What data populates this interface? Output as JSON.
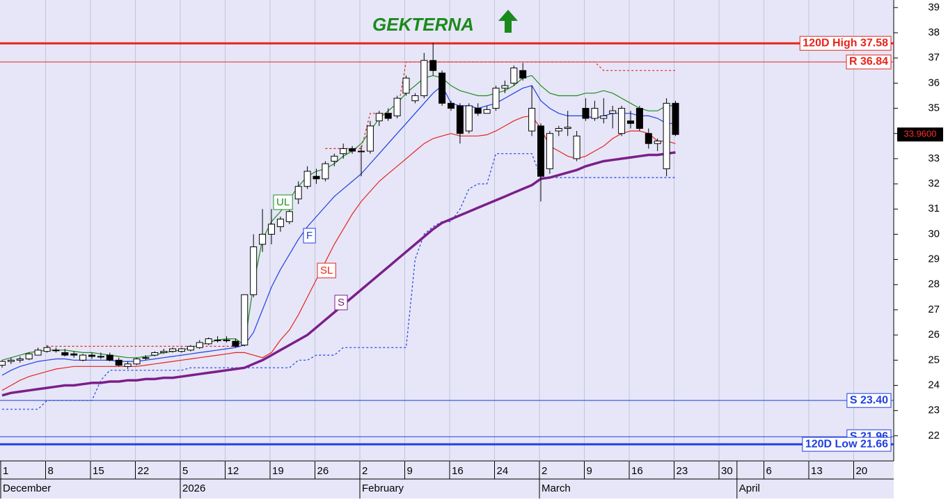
{
  "chart_data": {
    "type": "candlestick",
    "title": "GEKTERNA",
    "title_color": "#1a8a1a",
    "categories": [
      "1",
      null,
      null,
      null,
      null,
      "8",
      null,
      null,
      null,
      null,
      "15",
      null,
      null,
      null,
      null,
      "22",
      null,
      null,
      null,
      null,
      "5",
      null,
      null,
      null,
      null,
      "12",
      null,
      null,
      null,
      null,
      "19",
      null,
      null,
      null,
      null,
      "26",
      null,
      null,
      null,
      null,
      "2",
      null,
      null,
      null,
      null,
      "9",
      null,
      null,
      null,
      null,
      "16",
      null,
      null,
      null,
      null,
      "24",
      null,
      null,
      null,
      null,
      "2",
      null,
      null,
      null,
      null,
      "9",
      null,
      null,
      null,
      null,
      "16",
      null,
      null,
      null,
      null,
      "23",
      null,
      null,
      null,
      null,
      "30",
      null,
      null,
      null,
      null,
      "6",
      null,
      null,
      null,
      null,
      "13",
      null,
      null,
      null,
      null,
      "20",
      null,
      null,
      null,
      null
    ],
    "months": [
      "December",
      null,
      null,
      null,
      null,
      null,
      null,
      null,
      null,
      null,
      null,
      null,
      null,
      null,
      null,
      null,
      null,
      null,
      null,
      null,
      "2026",
      null,
      null,
      null,
      null,
      null,
      null,
      null,
      null,
      null,
      null,
      null,
      null,
      null,
      null,
      null,
      null,
      null,
      null,
      null,
      "February",
      null,
      null,
      null,
      null,
      null,
      null,
      null,
      null,
      null,
      null,
      null,
      null,
      null,
      null,
      null,
      null,
      null,
      null,
      null,
      "March",
      null,
      null,
      null,
      null,
      null,
      null,
      null,
      null,
      null,
      null,
      null,
      null,
      null,
      null,
      null,
      null,
      null,
      null,
      null,
      null,
      null,
      "April",
      null,
      null,
      null,
      null,
      null,
      null,
      null,
      null,
      null,
      null,
      null,
      null,
      null,
      null,
      null,
      null,
      null
    ],
    "open": [
      24.8,
      24.95,
      25.0,
      25.05,
      25.2,
      25.35,
      25.4,
      25.3,
      25.25,
      25.0,
      25.2,
      25.15,
      25.2,
      25.0,
      24.75,
      24.85,
      25.1,
      25.2,
      25.3,
      25.35,
      25.35,
      25.4,
      25.5,
      25.65,
      25.8,
      25.8,
      25.75,
      25.6,
      27.6,
      29.6,
      30.0,
      30.3,
      30.5,
      31.4,
      31.9,
      32.3,
      32.2,
      32.9,
      33.2,
      33.4,
      33.3,
      33.3,
      34.5,
      34.8,
      34.7,
      35.6,
      35.3,
      35.5,
      36.9,
      36.4,
      35.2,
      35.1,
      34.1,
      35.0,
      34.8,
      35.0,
      35.8,
      36.0,
      36.5,
      34.1,
      34.3,
      32.6,
      34.1,
      34.2,
      33.0,
      35.0,
      34.6,
      34.6,
      34.8,
      34.0,
      34.5,
      35.0,
      34.0,
      33.6,
      32.6,
      35.2,
      null,
      null,
      null,
      null,
      null,
      null,
      null,
      null,
      null,
      null,
      null,
      null,
      null,
      null,
      null,
      null,
      null,
      null,
      null,
      null,
      null,
      null,
      null,
      null
    ],
    "high": [
      25.0,
      25.1,
      25.15,
      25.3,
      25.5,
      25.6,
      25.5,
      25.45,
      25.35,
      25.25,
      25.3,
      25.3,
      25.3,
      25.1,
      24.95,
      25.1,
      25.2,
      25.35,
      25.45,
      25.5,
      25.5,
      25.6,
      25.8,
      25.9,
      25.95,
      25.95,
      25.85,
      27.6,
      30.0,
      31.0,
      31.0,
      30.7,
      31.0,
      32.1,
      32.7,
      32.6,
      32.9,
      33.2,
      33.6,
      33.5,
      33.5,
      34.5,
      34.9,
      35.0,
      35.5,
      36.3,
      35.6,
      37.2,
      37.6,
      36.5,
      35.3,
      35.2,
      35.2,
      35.2,
      35.1,
      35.9,
      36.1,
      36.7,
      36.8,
      35.9,
      34.4,
      34.1,
      34.3,
      34.9,
      34.1,
      35.4,
      35.3,
      35.4,
      35.1,
      35.1,
      34.9,
      35.1,
      34.2,
      33.8,
      35.4,
      35.3,
      null,
      null,
      null,
      null,
      null,
      null,
      null,
      null,
      null,
      null,
      null,
      null,
      null,
      null,
      null,
      null,
      null,
      null,
      null,
      null,
      null,
      null,
      null,
      null
    ],
    "low": [
      24.7,
      24.85,
      24.9,
      25.0,
      25.2,
      25.3,
      25.3,
      25.15,
      25.1,
      24.95,
      25.05,
      25.05,
      24.95,
      24.75,
      24.65,
      24.8,
      25.0,
      25.15,
      25.25,
      25.3,
      25.3,
      25.35,
      25.45,
      25.6,
      25.7,
      25.7,
      25.5,
      25.55,
      27.5,
      29.3,
      29.6,
      30.1,
      30.4,
      31.2,
      31.8,
      32.0,
      32.1,
      32.7,
      33.0,
      33.2,
      32.3,
      33.2,
      34.3,
      34.5,
      34.6,
      35.5,
      35.2,
      35.4,
      36.3,
      35.1,
      34.9,
      33.6,
      34.0,
      34.7,
      34.8,
      34.9,
      35.6,
      35.9,
      36.1,
      33.9,
      31.3,
      32.4,
      33.9,
      33.9,
      32.9,
      34.5,
      34.5,
      34.4,
      34.2,
      33.9,
      34.2,
      34.1,
      33.4,
      33.3,
      32.3,
      33.9,
      null,
      null,
      null,
      null,
      null,
      null,
      null,
      null,
      null,
      null,
      null,
      null,
      null,
      null,
      null,
      null,
      null,
      null,
      null,
      null,
      null,
      null,
      null,
      null
    ],
    "close": [
      24.95,
      25.0,
      25.05,
      25.25,
      25.4,
      25.5,
      25.4,
      25.2,
      25.2,
      25.2,
      25.15,
      25.15,
      25.0,
      24.8,
      24.85,
      25.05,
      25.1,
      25.3,
      25.35,
      25.45,
      25.45,
      25.55,
      25.7,
      25.85,
      25.8,
      25.8,
      25.55,
      27.6,
      29.5,
      30.0,
      30.4,
      30.6,
      30.9,
      31.9,
      32.5,
      32.2,
      32.8,
      33.1,
      33.4,
      33.3,
      33.3,
      34.3,
      34.8,
      34.6,
      35.4,
      36.2,
      35.5,
      36.9,
      36.5,
      35.2,
      35.0,
      34.0,
      35.1,
      34.8,
      34.95,
      35.8,
      35.9,
      36.6,
      36.2,
      35.0,
      32.3,
      34.0,
      34.2,
      34.25,
      33.9,
      34.6,
      35.0,
      34.7,
      34.9,
      35.0,
      34.4,
      34.2,
      33.6,
      33.7,
      35.2,
      33.96,
      null,
      null,
      null,
      null,
      null,
      null,
      null,
      null,
      null,
      null,
      null,
      null,
      null,
      null,
      null,
      null,
      null,
      null,
      null,
      null,
      null,
      null,
      null,
      null
    ],
    "series": [
      {
        "name": "UL",
        "color": "#1e8c1e",
        "width": 1.2,
        "values": [
          25.0,
          25.1,
          25.2,
          25.3,
          25.35,
          25.4,
          25.4,
          25.4,
          25.35,
          25.3,
          25.3,
          25.25,
          25.2,
          25.15,
          25.1,
          25.1,
          25.15,
          25.2,
          25.3,
          25.35,
          25.4,
          25.5,
          25.6,
          25.7,
          25.8,
          25.85,
          25.85,
          25.6,
          28.0,
          29.8,
          30.5,
          30.9,
          31.4,
          31.9,
          32.3,
          32.5,
          32.6,
          32.8,
          33.1,
          33.3,
          33.6,
          34.1,
          34.6,
          34.9,
          35.2,
          35.6,
          35.9,
          36.2,
          36.3,
          36.2,
          35.9,
          35.7,
          35.6,
          35.5,
          35.5,
          35.6,
          35.7,
          35.9,
          36.2,
          36.3,
          35.9,
          35.6,
          35.5,
          35.5,
          35.5,
          35.6,
          35.6,
          35.7,
          35.6,
          35.4,
          35.2,
          35.0,
          34.9,
          34.9,
          35.1,
          35.1,
          null,
          null,
          null,
          null,
          null,
          null,
          null,
          null,
          null,
          null,
          null,
          null,
          null,
          null,
          null,
          null,
          null,
          null,
          null,
          null,
          null,
          null,
          null,
          null
        ]
      },
      {
        "name": "F",
        "color": "#1f3fe0",
        "width": 1.2,
        "values": [
          24.4,
          24.6,
          24.75,
          24.85,
          24.95,
          25.0,
          25.05,
          25.05,
          25.0,
          25.0,
          25.0,
          25.0,
          25.0,
          24.95,
          24.95,
          24.95,
          25.0,
          25.05,
          25.1,
          25.15,
          25.2,
          25.25,
          25.3,
          25.35,
          25.4,
          25.45,
          25.5,
          25.6,
          26.1,
          27.0,
          27.9,
          28.6,
          29.2,
          29.8,
          30.3,
          30.7,
          31.1,
          31.5,
          31.8,
          32.1,
          32.4,
          32.8,
          33.2,
          33.6,
          34.0,
          34.4,
          34.8,
          35.2,
          35.6,
          35.9,
          35.2,
          35.1,
          35.1,
          35.0,
          35.1,
          35.2,
          35.4,
          35.6,
          35.8,
          35.9,
          35.3,
          35.0,
          34.8,
          34.7,
          34.7,
          34.7,
          34.6,
          34.7,
          34.8,
          34.8,
          34.8,
          34.7,
          34.7,
          34.6,
          34.4,
          34.4,
          null,
          null,
          null,
          null,
          null,
          null,
          null,
          null,
          null,
          null,
          null,
          null,
          null,
          null,
          null,
          null,
          null,
          null,
          null,
          null,
          null,
          null,
          null,
          null
        ]
      },
      {
        "name": "SL",
        "color": "#e8231a",
        "width": 1.2,
        "values": [
          23.8,
          24.0,
          24.2,
          24.35,
          24.45,
          24.55,
          24.65,
          24.7,
          24.75,
          24.75,
          24.75,
          24.75,
          24.75,
          24.75,
          24.75,
          24.75,
          24.8,
          24.85,
          24.9,
          24.95,
          25.0,
          25.05,
          25.1,
          25.15,
          25.2,
          25.25,
          25.3,
          25.3,
          25.2,
          25.1,
          25.3,
          25.8,
          26.2,
          26.8,
          27.5,
          28.2,
          28.9,
          29.6,
          30.2,
          30.8,
          31.3,
          31.7,
          32.1,
          32.4,
          32.7,
          33.0,
          33.3,
          33.6,
          33.8,
          33.9,
          34.0,
          33.9,
          33.9,
          33.9,
          33.95,
          34.1,
          34.3,
          34.5,
          34.65,
          34.7,
          34.2,
          33.5,
          33.3,
          33.1,
          33.0,
          33.1,
          33.3,
          33.5,
          33.8,
          34.0,
          34.1,
          34.1,
          34.0,
          33.7,
          33.7,
          33.6,
          null,
          null,
          null,
          null,
          null,
          null,
          null,
          null,
          null,
          null,
          null,
          null,
          null,
          null,
          null,
          null,
          null,
          null,
          null,
          null,
          null,
          null,
          null,
          null
        ]
      },
      {
        "name": "S",
        "color": "#7b1f8a",
        "width": 3.5,
        "values": [
          23.6,
          23.7,
          23.75,
          23.8,
          23.85,
          23.9,
          23.95,
          24.0,
          24.0,
          24.05,
          24.1,
          24.1,
          24.15,
          24.15,
          24.2,
          24.2,
          24.25,
          24.25,
          24.3,
          24.3,
          24.35,
          24.4,
          24.45,
          24.5,
          24.55,
          24.6,
          24.65,
          24.7,
          24.85,
          25.0,
          25.2,
          25.4,
          25.6,
          25.8,
          26.0,
          26.3,
          26.6,
          26.9,
          27.2,
          27.5,
          27.8,
          28.1,
          28.4,
          28.7,
          29.0,
          29.3,
          29.6,
          29.9,
          30.2,
          30.45,
          30.6,
          30.75,
          30.9,
          31.05,
          31.2,
          31.35,
          31.5,
          31.65,
          31.8,
          31.95,
          32.2,
          32.25,
          32.35,
          32.45,
          32.55,
          32.7,
          32.8,
          32.9,
          32.95,
          33.0,
          33.05,
          33.1,
          33.15,
          33.15,
          33.2,
          33.25,
          null,
          null,
          null,
          null,
          null,
          null,
          null,
          null,
          null,
          null,
          null,
          null,
          null,
          null,
          null,
          null,
          null,
          null,
          null,
          null,
          null,
          null,
          null,
          null
        ]
      }
    ],
    "trails": [
      {
        "color": "#e8231a",
        "values": [
          null,
          null,
          null,
          null,
          null,
          25.55,
          25.55,
          25.55,
          25.55,
          25.55,
          25.55,
          25.55,
          25.55,
          25.55,
          25.55,
          25.55,
          25.55,
          25.55,
          25.55,
          25.55,
          25.55,
          25.55,
          25.55,
          25.55,
          25.55,
          25.55,
          25.55,
          25.8,
          null,
          null,
          null,
          null,
          null,
          null,
          null,
          null,
          33.4,
          33.4,
          33.4,
          33.4,
          33.4,
          34.8,
          34.8,
          34.8,
          34.8,
          36.84,
          36.84,
          36.84,
          36.84,
          36.84,
          36.84,
          36.84,
          36.84,
          36.84,
          36.84,
          36.84,
          36.84,
          36.84,
          36.84,
          36.84,
          36.84,
          36.84,
          36.84,
          36.84,
          36.84,
          36.84,
          36.84,
          36.5,
          36.5,
          36.5,
          36.5,
          36.5,
          36.5,
          36.5,
          36.5,
          36.5,
          null,
          null,
          null,
          null,
          null,
          null,
          null,
          null,
          null,
          null,
          null,
          null,
          null,
          null,
          null,
          null,
          null,
          null,
          null,
          null,
          null,
          null,
          null,
          null
        ]
      },
      {
        "color": "#1f3fe0",
        "values": [
          23.05,
          23.05,
          23.05,
          23.05,
          23.05,
          23.4,
          23.4,
          23.4,
          23.4,
          23.4,
          23.4,
          24.2,
          24.6,
          24.6,
          24.6,
          24.6,
          24.6,
          24.6,
          24.6,
          24.6,
          24.6,
          24.7,
          24.7,
          24.7,
          24.7,
          24.7,
          24.7,
          24.7,
          24.7,
          24.7,
          24.7,
          24.7,
          24.7,
          25.0,
          25.0,
          25.2,
          25.2,
          25.2,
          25.5,
          25.5,
          25.5,
          25.5,
          25.5,
          25.5,
          25.5,
          25.5,
          29.0,
          30.0,
          30.3,
          30.5,
          30.5,
          31.0,
          31.8,
          32.0,
          32.0,
          33.2,
          33.2,
          33.2,
          33.2,
          33.2,
          32.25,
          32.25,
          32.25,
          32.25,
          32.25,
          32.25,
          32.25,
          32.25,
          32.25,
          32.25,
          32.25,
          32.25,
          32.25,
          32.25,
          32.25,
          32.25,
          null,
          null,
          null,
          null,
          null,
          null,
          null,
          null,
          null,
          null,
          null,
          null,
          null,
          null,
          null,
          null,
          null,
          null,
          null,
          null,
          null,
          null,
          null,
          null
        ]
      }
    ],
    "levels": [
      {
        "value": 37.58,
        "label": "120D High 37.58",
        "color": "#e8231a",
        "width": 3
      },
      {
        "value": 36.84,
        "label": "R 36.84",
        "color": "#e8231a",
        "width": 1
      },
      {
        "value": 23.4,
        "label": "S 23.40",
        "color": "#1f3fe0",
        "width": 1
      },
      {
        "value": 21.96,
        "label": "S 21.96",
        "color": "#1f3fe0",
        "width": 1
      },
      {
        "value": 21.66,
        "label": "120D Low 21.66",
        "color": "#1f3fe0",
        "width": 3
      }
    ],
    "last_price": {
      "value": 33.96,
      "label": "33.9600"
    },
    "ylim": [
      21,
      39.3
    ],
    "yticks": [
      22,
      23,
      24,
      25,
      26,
      27,
      28,
      29,
      30,
      31,
      32,
      33,
      34,
      35,
      36,
      37,
      38,
      39
    ],
    "grid": true
  }
}
